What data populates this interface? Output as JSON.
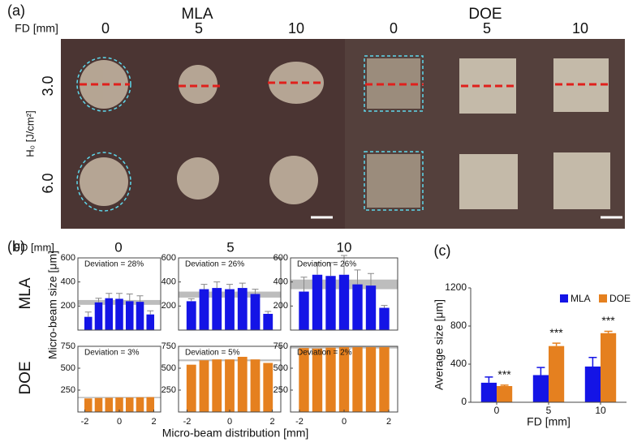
{
  "panel_a": {
    "label": "(a)",
    "groups": [
      "MLA",
      "DOE"
    ],
    "fd_label": "FD [mm]",
    "fd_values": [
      "0",
      "5",
      "10",
      "0",
      "5",
      "10"
    ],
    "rows": [
      "3.0",
      "6.0"
    ],
    "row_axis": "H₀ [J/cm²]"
  },
  "panel_b": {
    "label": "(b)",
    "fd_label": "FD [mm]",
    "fd_values": [
      "0",
      "5",
      "10"
    ],
    "rows": [
      "MLA",
      "DOE"
    ],
    "ylabel": "Micro-beam size [μm]",
    "xlabel": "Micro-beam distribution [mm]"
  },
  "chart_data": [
    {
      "type": "bar",
      "annotation": "Deviation = 28%",
      "x": [
        -1.8,
        -1.2,
        -0.6,
        0,
        0.6,
        1.2,
        1.8
      ],
      "values": [
        110,
        230,
        265,
        260,
        240,
        235,
        130
      ],
      "errors": [
        40,
        35,
        40,
        45,
        60,
        50,
        30
      ],
      "band": [
        210,
        250
      ],
      "color": "#1414e6",
      "xlim": [
        -2.4,
        2.4
      ],
      "ylim": [
        0,
        600
      ],
      "yticks": [
        0,
        200,
        400,
        600
      ]
    },
    {
      "type": "bar",
      "annotation": "Deviation = 26%",
      "x": [
        -1.8,
        -1.2,
        -0.6,
        0,
        0.6,
        1.2,
        1.8
      ],
      "values": [
        240,
        340,
        350,
        340,
        350,
        300,
        135
      ],
      "errors": [
        20,
        40,
        50,
        40,
        40,
        40,
        20
      ],
      "band": [
        270,
        320
      ],
      "color": "#1414e6",
      "xlim": [
        -2.4,
        2.4
      ],
      "ylim": [
        0,
        600
      ],
      "yticks": [
        0,
        200,
        400,
        600
      ]
    },
    {
      "type": "bar",
      "annotation": "Deviation = 26%",
      "x": [
        -1.8,
        -1.2,
        -0.6,
        0,
        0.6,
        1.2,
        1.8
      ],
      "values": [
        320,
        460,
        450,
        460,
        380,
        370,
        185
      ],
      "errors": [
        120,
        100,
        110,
        160,
        120,
        100,
        20
      ],
      "band": [
        340,
        420
      ],
      "color": "#1414e6",
      "xlim": [
        -2.4,
        2.4
      ],
      "ylim": [
        0,
        600
      ],
      "yticks": [
        0,
        200,
        400,
        600
      ]
    },
    {
      "type": "bar",
      "annotation": "Deviation = 3%",
      "x": [
        -1.8,
        -1.2,
        -0.6,
        0,
        0.6,
        1.2,
        1.8
      ],
      "values": [
        155,
        160,
        162,
        165,
        165,
        168,
        170
      ],
      "band": [
        160,
        172
      ],
      "color": "#e5801f",
      "xlim": [
        -2.4,
        2.4
      ],
      "ylim": [
        0,
        750
      ],
      "yticks": [
        0,
        250,
        500,
        750
      ],
      "xticks": [
        -2,
        0,
        2
      ]
    },
    {
      "type": "bar",
      "annotation": "Deviation = 5%",
      "x": [
        -1.8,
        -1.2,
        -0.6,
        0,
        0.6,
        1.2,
        1.8
      ],
      "values": [
        540,
        590,
        600,
        600,
        630,
        600,
        560
      ],
      "band": [
        580,
        600
      ],
      "color": "#e5801f",
      "xlim": [
        -2.4,
        2.4
      ],
      "ylim": [
        0,
        750
      ],
      "yticks": [
        0,
        250,
        500,
        750
      ],
      "xticks": [
        -2,
        0,
        2
      ]
    },
    {
      "type": "bar",
      "annotation": "Deviation = 2%",
      "x": [
        -1.8,
        -1.2,
        -0.6,
        0,
        0.6,
        1.2,
        1.8
      ],
      "values": [
        730,
        725,
        735,
        740,
        740,
        740,
        740
      ],
      "band": [
        725,
        745
      ],
      "color": "#e5801f",
      "xlim": [
        -2.4,
        2.4
      ],
      "ylim": [
        0,
        750
      ],
      "yticks": [
        0,
        250,
        500,
        750
      ],
      "xticks": [
        -2,
        0,
        2
      ]
    },
    {
      "type": "bar",
      "panel_label": "(c)",
      "xlabel": "FD [mm]",
      "ylabel": "Average size [μm]",
      "categories": [
        "0",
        "5",
        "10"
      ],
      "series": [
        {
          "name": "MLA",
          "color": "#1414e6",
          "values": [
            205,
            285,
            375
          ],
          "errors": [
            60,
            80,
            95
          ]
        },
        {
          "name": "DOE",
          "color": "#e5801f",
          "values": [
            170,
            590,
            725
          ],
          "errors": [
            10,
            30,
            20
          ]
        }
      ],
      "annotations": [
        "***",
        "***",
        "***"
      ],
      "ylim": [
        0,
        1200
      ],
      "yticks": [
        0,
        400,
        800,
        1200
      ]
    }
  ]
}
